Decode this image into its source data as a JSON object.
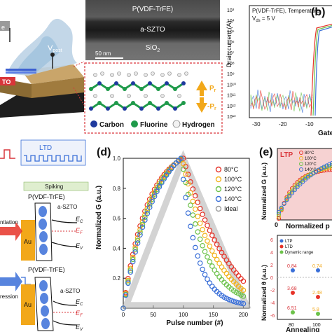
{
  "panel_a": {
    "label_vpost": "V",
    "label_vpost_sub": "post",
    "label_gate_partial": "e",
    "label_szto_partial": "TO"
  },
  "tem": {
    "layer_pvdf": "P(VDF-TrFE)",
    "layer_aszto": "a-SZTO",
    "layer_sio2": "SiO",
    "layer_sio2_sub": "2",
    "scalebar": "50 nm"
  },
  "molecule_legend": {
    "items": [
      {
        "label": "Carbon",
        "color": "#1f3a9e"
      },
      {
        "label": "Fluorine",
        "color": "#1f9a4a"
      },
      {
        "label": "Hydrogen",
        "color": "#f2f2f2"
      }
    ],
    "pr_plus": "P",
    "pr_plus_sub": "r",
    "pr_minus": "-P",
    "pr_minus_sub": "r"
  },
  "panel_b": {
    "label": "(b)",
    "title": "P(VDF-TrFE), Temperature",
    "vds": "V",
    "vds_sub": "ds",
    "vds_value": " = 5 V",
    "ylabel": "Drain current (A)",
    "xlabel": "Gate",
    "yticks": [
      "10³",
      "10⁴",
      "10⁵",
      "10⁶",
      "10⁷",
      "10⁸",
      "10⁹",
      "10¹⁰",
      "10¹¹",
      "10¹²",
      "10¹³"
    ],
    "xticks": [
      "-30",
      "-20",
      "-10",
      "0"
    ]
  },
  "panel_c": {
    "ltd": "LTD",
    "spiking": "Spiking",
    "pvdf_top": "P(VDF-TrFE)",
    "aszto_top": "a-SZTO",
    "ec_top": "E",
    "ec_top_sub": "C",
    "ef_top": "E",
    "ef_top_sub": "F",
    "ev_top": "E",
    "ev_top_sub": "V",
    "au_top": "Au",
    "potentiation_partial": "ntiation",
    "pvdf_bottom": "P(VDF-TrFE)",
    "aszto_bottom": "a-SZTO",
    "ec_bottom": "E",
    "ec_bottom_sub": "C",
    "ef_bottom": "E",
    "ef_bottom_sub": "F",
    "ev_bottom": "E",
    "ev_bottom_sub": "V",
    "au_bottom": "Au",
    "depression_partial": "ression"
  },
  "panel_d": {
    "label": "(d)",
    "chart_data": {
      "type": "scatter",
      "xlabel": "Pulse number (#)",
      "ylabel": "Normalized G (a.u.)",
      "xlim": [
        0,
        210
      ],
      "ylim": [
        0,
        1
      ],
      "xticks": [
        "0",
        "50",
        "100",
        "150",
        "200"
      ],
      "yticks": [
        "0.2",
        "0.4",
        "0.6",
        "0.8",
        "1.0"
      ],
      "legend_position": "top-right",
      "series": [
        {
          "name": "80°C",
          "color": "#e63228",
          "peak": 100,
          "ltp_k": 2.5,
          "ltd_k": 1.2,
          "end": 0.18
        },
        {
          "name": "100°C",
          "color": "#f2b21a",
          "peak": 98,
          "ltp_k": 2.2,
          "ltd_k": 1.8,
          "end": 0.12
        },
        {
          "name": "120°C",
          "color": "#6cc24a",
          "peak": 97,
          "ltp_k": 2.0,
          "ltd_k": 2.6,
          "end": 0.08
        },
        {
          "name": "140°C",
          "color": "#3a6fd8",
          "peak": 96,
          "ltp_k": 1.8,
          "ltd_k": 4.0,
          "end": 0.03
        },
        {
          "name": "Ideal",
          "color": "#9a9a9a",
          "peak": 100,
          "ltp_k": 0,
          "ltd_k": 0,
          "end": 0.0
        }
      ]
    }
  },
  "panel_e": {
    "label": "(e)",
    "top": {
      "ltp": "LTP",
      "ylabel": "Normalized G (a.u.)",
      "xlabel": "Normalized p",
      "xtick0": "0",
      "legend": [
        {
          "name": "80°C",
          "color": "#e63228"
        },
        {
          "name": "100°C",
          "color": "#f2b21a"
        },
        {
          "name": "120°C",
          "color": "#6cc24a"
        },
        {
          "name": "140°C",
          "color": "#3a6fd8"
        }
      ]
    },
    "bottom": {
      "ylabel": "Normalized θ (a.u.)",
      "xlabel": "Annealing",
      "yticks": [
        "6",
        "4",
        "2",
        "0",
        "-2",
        "-4",
        "-6"
      ],
      "xticks": [
        "80",
        "100"
      ],
      "legend": [
        {
          "name": "LTP",
          "color": "#3a6fd8"
        },
        {
          "name": "LTD",
          "color": "#e63228"
        },
        {
          "name": "Dynamic range",
          "color": "#6cc24a"
        }
      ],
      "values": {
        "ltp": [
          "0.84",
          "0.74"
        ],
        "ltd": [
          "3.68",
          "2.48"
        ],
        "dr": [
          "6.51",
          "5.8"
        ]
      }
    }
  }
}
